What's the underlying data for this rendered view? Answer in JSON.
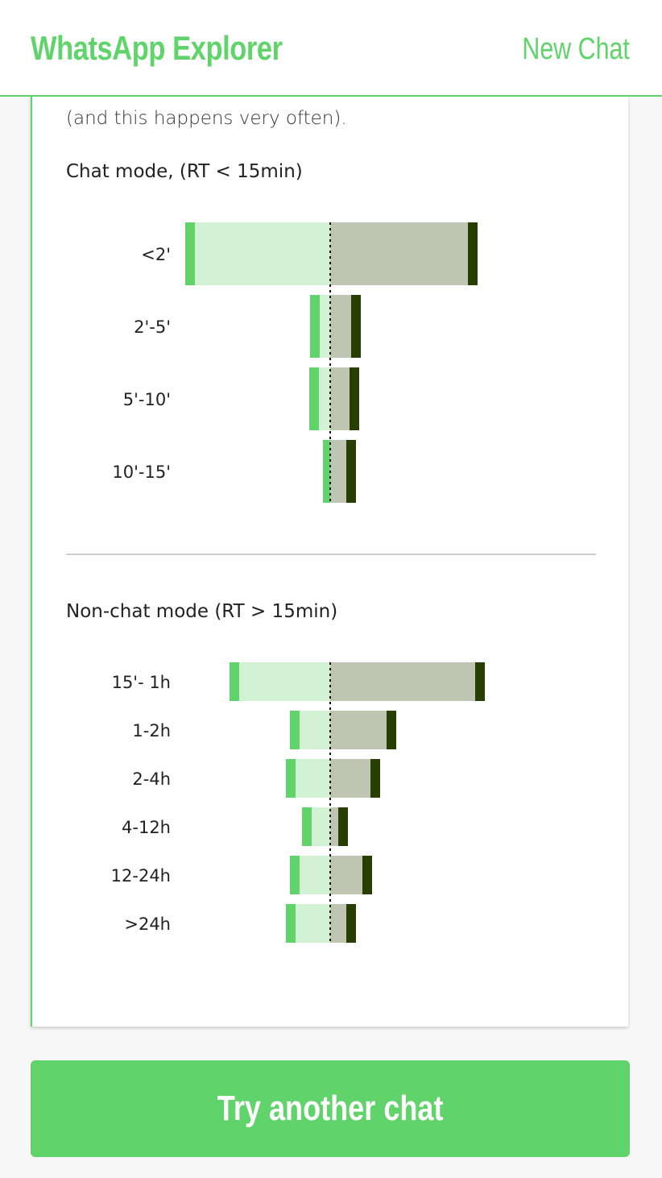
{
  "header": {
    "title": "WhatsApp Explorer",
    "new_chat_label": "New Chat"
  },
  "intro": {
    "text": "(and this happens very often)."
  },
  "colors": {
    "accent": "#60d36a",
    "left_light": "#d2f1d4",
    "right_light": "#bfc5b3",
    "right_dark": "#273f02"
  },
  "chart_data": [
    {
      "type": "bar",
      "title": "Chat mode, (RT < 15min)",
      "categories": [
        "<2'",
        "2'-5'",
        "5'-10'",
        "10'-15'"
      ],
      "series": [
        {
          "values": [
            180,
            25,
            26,
            9
          ]
        },
        {
          "values": [
            183,
            38,
            36,
            32
          ]
        }
      ]
    },
    {
      "type": "bar",
      "title": "Non-chat mode (RT > 15min)",
      "categories": [
        "15'- 1h",
        "1-2h",
        "2-4h",
        "4-12h",
        "12-24h",
        ">24h"
      ],
      "series": [
        {
          "values": [
            125,
            50,
            55,
            35,
            50,
            55
          ]
        },
        {
          "values": [
            192,
            82,
            62,
            22,
            52,
            32
          ]
        }
      ]
    }
  ],
  "footer": {
    "button_label": "Try another chat"
  }
}
